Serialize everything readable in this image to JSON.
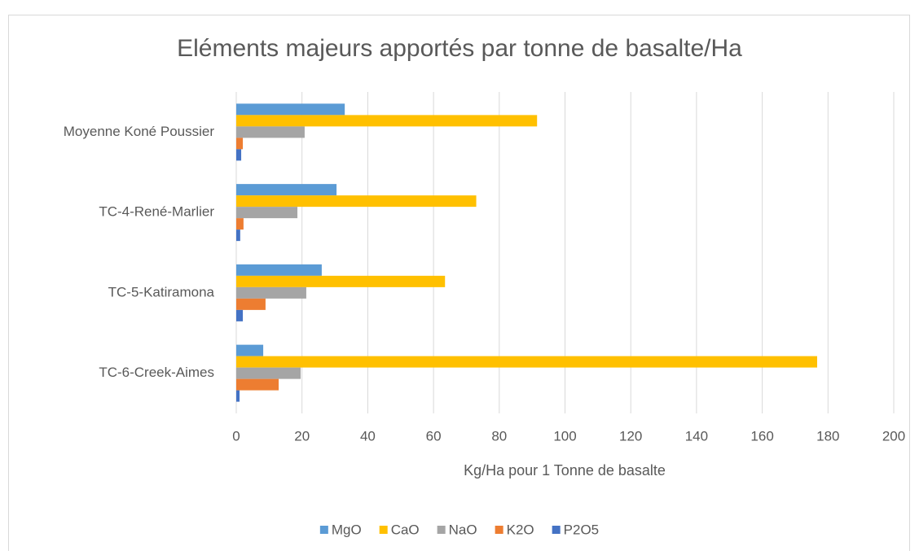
{
  "chart_data": {
    "type": "bar",
    "orientation": "horizontal",
    "title": "Eléments majeurs apportés par tonne de basalte/Ha",
    "x_label": "Kg/Ha pour 1 Tonne de basalte",
    "categories": [
      "Moyenne Koné Poussier",
      "TC-4-René-Marlier",
      "TC-5-Katiramona",
      "TC-6-Creek-Aimes"
    ],
    "series": [
      {
        "name": "MgO",
        "color": "#5b9bd5",
        "values": [
          33,
          30.5,
          26,
          8.2
        ]
      },
      {
        "name": "CaO",
        "color": "#ffc000",
        "values": [
          91.5,
          73,
          63.5,
          176.7
        ]
      },
      {
        "name": "NaO",
        "color": "#a5a5a5",
        "values": [
          20.8,
          18.6,
          21.3,
          19.6
        ]
      },
      {
        "name": "K2O",
        "color": "#ed7d31",
        "values": [
          2,
          2.2,
          8.9,
          12.9
        ]
      },
      {
        "name": "P2O5",
        "color": "#4472c4",
        "values": [
          1.5,
          1.2,
          2,
          1
        ]
      }
    ],
    "xlim": [
      0,
      200
    ],
    "xticks": [
      0,
      20,
      40,
      60,
      80,
      100,
      120,
      140,
      160,
      180,
      200
    ],
    "grid": true,
    "legend": "bottom"
  }
}
